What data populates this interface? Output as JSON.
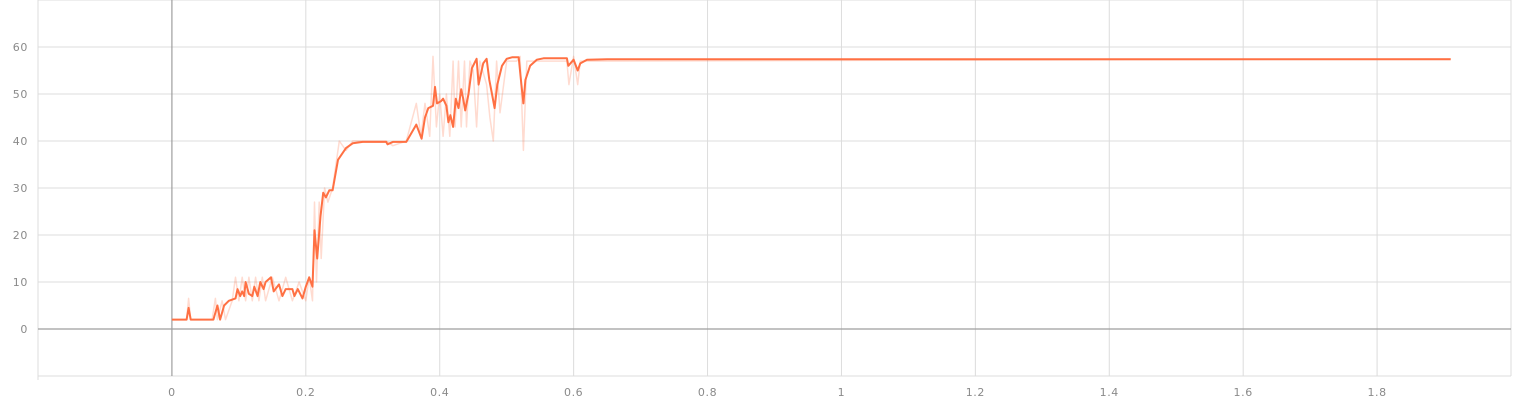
{
  "chart_data": {
    "type": "line",
    "title": "",
    "xlabel": "",
    "ylabel": "",
    "xlim": [
      -0.2,
      2.0
    ],
    "ylim": [
      -10,
      70
    ],
    "x_ticks": [
      {
        "value": 0,
        "label": "0"
      },
      {
        "value": 0.2,
        "label": "0.2"
      },
      {
        "value": 0.4,
        "label": "0.4"
      },
      {
        "value": 0.6,
        "label": "0.6"
      },
      {
        "value": 0.8,
        "label": "0.8"
      },
      {
        "value": 1,
        "label": "1"
      },
      {
        "value": 1.2,
        "label": "1.2"
      },
      {
        "value": 1.4,
        "label": "1.4"
      },
      {
        "value": 1.6,
        "label": "1.6"
      },
      {
        "value": 1.8,
        "label": "1.8"
      }
    ],
    "y_ticks": [
      {
        "value": 0,
        "label": "0"
      },
      {
        "value": 10,
        "label": "10"
      },
      {
        "value": 20,
        "label": "20"
      },
      {
        "value": 30,
        "label": "30"
      },
      {
        "value": 40,
        "label": "40"
      },
      {
        "value": 50,
        "label": "50"
      },
      {
        "value": 60,
        "label": "60"
      }
    ],
    "grid": true,
    "color": "#ff7043",
    "series": [
      {
        "style": "raw",
        "points": [
          [
            0,
            2
          ],
          [
            0.022,
            2
          ],
          [
            0.025,
            6.5
          ],
          [
            0.028,
            2
          ],
          [
            0.06,
            2
          ],
          [
            0.065,
            6.5
          ],
          [
            0.068,
            2
          ],
          [
            0.075,
            6
          ],
          [
            0.08,
            2
          ],
          [
            0.09,
            6
          ],
          [
            0.095,
            11
          ],
          [
            0.1,
            6
          ],
          [
            0.105,
            11
          ],
          [
            0.11,
            6
          ],
          [
            0.115,
            11
          ],
          [
            0.12,
            6
          ],
          [
            0.125,
            11
          ],
          [
            0.13,
            6
          ],
          [
            0.135,
            11
          ],
          [
            0.14,
            6
          ],
          [
            0.15,
            11
          ],
          [
            0.16,
            6
          ],
          [
            0.17,
            11
          ],
          [
            0.18,
            6
          ],
          [
            0.19,
            10
          ],
          [
            0.2,
            6
          ],
          [
            0.205,
            11
          ],
          [
            0.21,
            6
          ],
          [
            0.213,
            27
          ],
          [
            0.216,
            10
          ],
          [
            0.22,
            27
          ],
          [
            0.223,
            15
          ],
          [
            0.228,
            30
          ],
          [
            0.233,
            27
          ],
          [
            0.24,
            30
          ],
          [
            0.25,
            40
          ],
          [
            0.26,
            38
          ],
          [
            0.27,
            40
          ],
          [
            0.32,
            40
          ],
          [
            0.33,
            39
          ],
          [
            0.35,
            40
          ],
          [
            0.365,
            48
          ],
          [
            0.372,
            41
          ],
          [
            0.378,
            48
          ],
          [
            0.385,
            41
          ],
          [
            0.39,
            58
          ],
          [
            0.395,
            43
          ],
          [
            0.4,
            50
          ],
          [
            0.405,
            41
          ],
          [
            0.41,
            50
          ],
          [
            0.415,
            41
          ],
          [
            0.42,
            57
          ],
          [
            0.423,
            43
          ],
          [
            0.428,
            57
          ],
          [
            0.432,
            43
          ],
          [
            0.437,
            57
          ],
          [
            0.44,
            43
          ],
          [
            0.445,
            57
          ],
          [
            0.45,
            55
          ],
          [
            0.455,
            43
          ],
          [
            0.46,
            57
          ],
          [
            0.47,
            52
          ],
          [
            0.475,
            45
          ],
          [
            0.48,
            40
          ],
          [
            0.485,
            57
          ],
          [
            0.49,
            46
          ],
          [
            0.5,
            57
          ],
          [
            0.515,
            57
          ],
          [
            0.52,
            58
          ],
          [
            0.525,
            38
          ],
          [
            0.53,
            57
          ],
          [
            0.545,
            57
          ],
          [
            0.59,
            57
          ],
          [
            0.593,
            52
          ],
          [
            0.6,
            58
          ],
          [
            0.606,
            52
          ],
          [
            0.61,
            57
          ],
          [
            0.62,
            57
          ],
          [
            1.91,
            57.5
          ]
        ]
      },
      {
        "style": "smoothed",
        "points": [
          [
            0,
            2
          ],
          [
            0.022,
            2
          ],
          [
            0.025,
            4.5
          ],
          [
            0.028,
            2
          ],
          [
            0.062,
            2
          ],
          [
            0.068,
            5
          ],
          [
            0.072,
            2
          ],
          [
            0.078,
            5
          ],
          [
            0.085,
            6
          ],
          [
            0.095,
            6.5
          ],
          [
            0.098,
            8.5
          ],
          [
            0.102,
            7
          ],
          [
            0.105,
            8
          ],
          [
            0.108,
            7
          ],
          [
            0.11,
            10
          ],
          [
            0.115,
            7.5
          ],
          [
            0.12,
            7
          ],
          [
            0.123,
            9
          ],
          [
            0.128,
            7
          ],
          [
            0.132,
            10
          ],
          [
            0.137,
            8.5
          ],
          [
            0.14,
            10
          ],
          [
            0.148,
            11
          ],
          [
            0.152,
            8
          ],
          [
            0.16,
            9.5
          ],
          [
            0.165,
            7
          ],
          [
            0.17,
            8.5
          ],
          [
            0.18,
            8.5
          ],
          [
            0.183,
            7
          ],
          [
            0.188,
            8.5
          ],
          [
            0.195,
            6.5
          ],
          [
            0.2,
            9
          ],
          [
            0.205,
            11
          ],
          [
            0.21,
            9
          ],
          [
            0.213,
            21
          ],
          [
            0.217,
            15
          ],
          [
            0.222,
            24
          ],
          [
            0.226,
            29
          ],
          [
            0.23,
            28
          ],
          [
            0.235,
            29.5
          ],
          [
            0.24,
            29.5
          ],
          [
            0.248,
            36
          ],
          [
            0.26,
            38.5
          ],
          [
            0.27,
            39.5
          ],
          [
            0.285,
            39.8
          ],
          [
            0.32,
            39.8
          ],
          [
            0.322,
            39.3
          ],
          [
            0.33,
            39.8
          ],
          [
            0.35,
            39.8
          ],
          [
            0.365,
            43.5
          ],
          [
            0.373,
            40.5
          ],
          [
            0.378,
            45
          ],
          [
            0.383,
            47
          ],
          [
            0.39,
            47.5
          ],
          [
            0.393,
            51.5
          ],
          [
            0.396,
            48
          ],
          [
            0.402,
            48.5
          ],
          [
            0.405,
            49
          ],
          [
            0.41,
            47.5
          ],
          [
            0.413,
            44
          ],
          [
            0.416,
            45.5
          ],
          [
            0.42,
            43
          ],
          [
            0.424,
            49
          ],
          [
            0.428,
            47
          ],
          [
            0.432,
            51
          ],
          [
            0.435,
            49
          ],
          [
            0.438,
            46.5
          ],
          [
            0.443,
            50
          ],
          [
            0.448,
            55.5
          ],
          [
            0.455,
            57.5
          ],
          [
            0.458,
            52
          ],
          [
            0.465,
            56.5
          ],
          [
            0.47,
            57.5
          ],
          [
            0.474,
            53
          ],
          [
            0.478,
            50
          ],
          [
            0.482,
            47
          ],
          [
            0.486,
            52
          ],
          [
            0.493,
            56
          ],
          [
            0.5,
            57.5
          ],
          [
            0.508,
            57.8
          ],
          [
            0.518,
            57.8
          ],
          [
            0.522,
            52
          ],
          [
            0.525,
            48
          ],
          [
            0.528,
            53
          ],
          [
            0.535,
            56
          ],
          [
            0.545,
            57.3
          ],
          [
            0.555,
            57.6
          ],
          [
            0.59,
            57.6
          ],
          [
            0.592,
            56
          ],
          [
            0.6,
            57.3
          ],
          [
            0.606,
            55
          ],
          [
            0.61,
            56.5
          ],
          [
            0.62,
            57.3
          ],
          [
            0.65,
            57.4
          ],
          [
            1.91,
            57.4
          ]
        ]
      }
    ]
  }
}
